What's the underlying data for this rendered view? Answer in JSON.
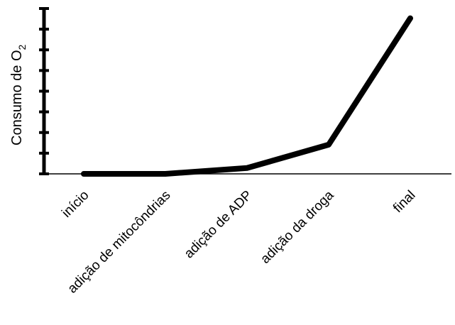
{
  "chart_data": {
    "type": "line",
    "categories": [
      "início",
      "adição de mitocôndrias",
      "adição de ADP",
      "adição da droga",
      "final"
    ],
    "series": [
      {
        "values": [
          0,
          0,
          0.3,
          1.5,
          8
        ]
      }
    ],
    "ylabel": "Consumo de O",
    "ylabel_subscript": "2",
    "ylim": [
      0,
      8.5
    ],
    "y_tick_count": 9,
    "y_tick_labels_shown": false,
    "grid": false,
    "line_color": "#000000"
  }
}
